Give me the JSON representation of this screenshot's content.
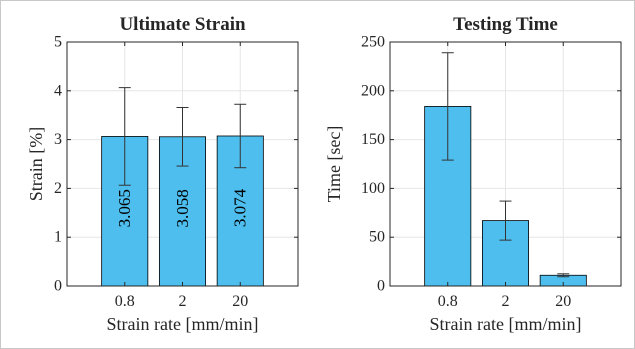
{
  "colors": {
    "bar": "#4DBEEE",
    "bar_edge": "#000000",
    "axis": "#262626",
    "grid": "#e6e6e6"
  },
  "chart_data": [
    {
      "type": "bar",
      "title": "Ultimate Strain",
      "xlabel": "Strain rate [mm/min]",
      "ylabel": "Strain [%]",
      "categories": [
        "0.8",
        "2",
        "20"
      ],
      "values": [
        3.065,
        3.058,
        3.074
      ],
      "errors": [
        1.0,
        0.6,
        0.65
      ],
      "data_labels": [
        "3.065",
        "3.058",
        "3.074"
      ],
      "ylim": [
        0,
        5
      ],
      "yticks": [
        0,
        1,
        2,
        3,
        4,
        5
      ],
      "grid": true
    },
    {
      "type": "bar",
      "title": "Testing Time",
      "xlabel": "Strain rate [mm/min]",
      "ylabel": "Time [sec]",
      "categories": [
        "0.8",
        "2",
        "20"
      ],
      "values": [
        184,
        67,
        11
      ],
      "errors": [
        55,
        20,
        1.5
      ],
      "data_labels": [],
      "ylim": [
        0,
        250
      ],
      "yticks": [
        0,
        50,
        100,
        150,
        200,
        250
      ],
      "grid": true
    }
  ]
}
